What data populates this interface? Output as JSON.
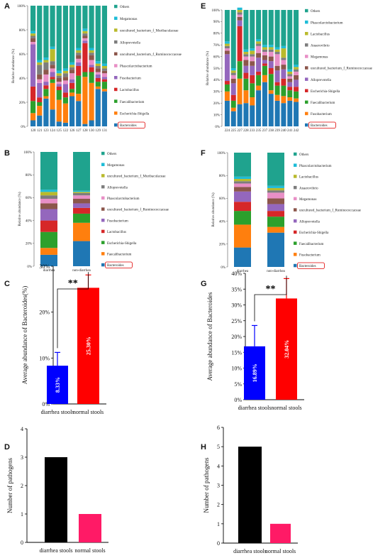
{
  "colors": {
    "Others": "#1fa38e",
    "Megamonas": "#1ebcd7",
    "uncultured_bacterium_f_Muribaculaceae": "#b9ba2c",
    "Alloprevotella": "#7d7d7d",
    "uncultured_bacterium_f_Ruminococcaceae": "#8c564b",
    "Phascolarctobacterium": "#e88fc6",
    "Fusobacterium_A": "#9467bd",
    "Lactobacillus": "#d62728",
    "Faecalibacterium": "#2ca02c",
    "Escherichia-Shigella": "#ff7f0e",
    "Bacteroides": "#1f77b4"
  },
  "chart_data": [
    {
      "panel": "A",
      "type": "bar",
      "stacked": true,
      "ylabel": "Relative abundance (%)",
      "yticks": [
        "0%",
        "20%",
        "40%",
        "60%",
        "80%",
        "100%"
      ],
      "categories": [
        "120",
        "121",
        "123",
        "124",
        "125",
        "122",
        "126",
        "127",
        "128",
        "130",
        "129",
        "131"
      ],
      "legend": [
        "Others",
        "Megamonas",
        "uncultured_bacterium_f_Muribaculaceae",
        "Alloprevotella",
        "uncultured_bacterium_f_Ruminococcaceae",
        "Phascolarctobacterium",
        "Fusobacterium",
        "Lactobacillus",
        "Faecalibacterium",
        "Escherichia-Shigella",
        "Bacteroides"
      ],
      "highlight": "Bacteroides",
      "series": [
        {
          "name": "Bacteroides",
          "color": "#1f77b4",
          "values": [
            5,
            9,
            23,
            14,
            4,
            3,
            25,
            21,
            2,
            5,
            31,
            29
          ]
        },
        {
          "name": "Escherichia-Shigella",
          "color": "#ff7f0e",
          "values": [
            6,
            8,
            2,
            22,
            18,
            16,
            3,
            6,
            39,
            31,
            2,
            2
          ]
        },
        {
          "name": "Faecalibacterium",
          "color": "#2ca02c",
          "values": [
            10,
            3,
            6,
            3,
            8,
            5,
            3,
            15,
            4,
            9,
            4,
            6
          ]
        },
        {
          "name": "Lactobacillus",
          "color": "#d62728",
          "values": [
            12,
            4,
            3,
            2,
            3,
            4,
            5,
            8,
            24,
            4,
            3,
            2
          ]
        },
        {
          "name": "Fusobacterium",
          "color": "#9467bd",
          "values": [
            35,
            12,
            3,
            4,
            2,
            7,
            3,
            3,
            2,
            2,
            3,
            2
          ]
        },
        {
          "name": "Phascolarctobacterium",
          "color": "#e88fc6",
          "values": [
            2,
            3,
            6,
            3,
            2,
            3,
            5,
            3,
            2,
            4,
            2,
            3
          ]
        },
        {
          "name": "uncultured_bacterium_f_Ruminococcaceae",
          "color": "#8c564b",
          "values": [
            3,
            4,
            4,
            3,
            3,
            3,
            3,
            3,
            2,
            4,
            3,
            2
          ]
        },
        {
          "name": "Alloprevotella",
          "color": "#7d7d7d",
          "values": [
            2,
            8,
            6,
            3,
            2,
            3,
            2,
            2,
            2,
            2,
            2,
            2
          ]
        },
        {
          "name": "uncultured_bacterium_f_Muribaculaceae",
          "color": "#b9ba2c",
          "values": [
            2,
            2,
            2,
            10,
            2,
            2,
            2,
            2,
            2,
            2,
            2,
            2
          ]
        },
        {
          "name": "Megamonas",
          "color": "#1ebcd7",
          "values": [
            2,
            2,
            2,
            2,
            2,
            2,
            2,
            2,
            2,
            2,
            2,
            2
          ]
        },
        {
          "name": "Others",
          "color": "#1fa38e",
          "values": [
            21,
            45,
            43,
            34,
            54,
            52,
            47,
            35,
            19,
            35,
            46,
            48
          ]
        }
      ]
    },
    {
      "panel": "E",
      "type": "bar",
      "stacked": true,
      "ylabel": "Relative abundance (%)",
      "yticks": [
        "0%",
        "10%",
        "20%",
        "30%",
        "40%",
        "50%",
        "60%",
        "70%",
        "80%",
        "90%",
        "100%"
      ],
      "categories": [
        "224",
        "225",
        "227",
        "228",
        "233",
        "235",
        "237",
        "238",
        "239",
        "240",
        "241",
        "242"
      ],
      "legend": [
        "Others",
        "Phascolarctobacterium",
        "Lactobacillus",
        "Anaerovibrio",
        "Megamonas",
        "uncultured_bacterium_f_Ruminococcaceae",
        "Alloprevotella",
        "Escherichia-Shigella",
        "Faecalibacterium",
        "Fusobacterium",
        "Bacteroides"
      ],
      "highlight": "Bacteroides",
      "series": [
        {
          "name": "Bacteroides",
          "color": "#1f77b4",
          "values": [
            22,
            13,
            19,
            20,
            18,
            31,
            38,
            28,
            22,
            20,
            22,
            21
          ]
        },
        {
          "name": "Fusobacterium",
          "color": "#ff7f0e",
          "values": [
            8,
            3,
            22,
            11,
            7,
            4,
            6,
            3,
            5,
            6,
            3,
            3
          ]
        },
        {
          "name": "Faecalibacterium",
          "color": "#2ca02c",
          "values": [
            6,
            6,
            15,
            10,
            12,
            9,
            8,
            14,
            8,
            9,
            6,
            6
          ]
        },
        {
          "name": "Escherichia-Shigella",
          "color": "#d62728",
          "values": [
            3,
            5,
            30,
            5,
            7,
            3,
            2,
            5,
            3,
            6,
            3,
            4
          ]
        },
        {
          "name": "Alloprevotella",
          "color": "#9467bd",
          "values": [
            23,
            10,
            5,
            6,
            8,
            12,
            3,
            6,
            10,
            8,
            4,
            6
          ]
        },
        {
          "name": "uncultured_bacterium_f_Ruminococcaceae",
          "color": "#8c564b",
          "values": [
            3,
            4,
            3,
            5,
            4,
            4,
            4,
            4,
            4,
            4,
            3,
            4
          ]
        },
        {
          "name": "Megamonas",
          "color": "#e88fc6",
          "values": [
            2,
            3,
            2,
            3,
            4,
            6,
            3,
            4,
            10,
            4,
            2,
            3
          ]
        },
        {
          "name": "Anaerovibrio",
          "color": "#7d7d7d",
          "values": [
            2,
            2,
            2,
            2,
            2,
            2,
            2,
            2,
            2,
            2,
            2,
            2
          ]
        },
        {
          "name": "Lactobacillus",
          "color": "#b9ba2c",
          "values": [
            2,
            2,
            2,
            2,
            3,
            2,
            2,
            2,
            2,
            8,
            2,
            2
          ]
        },
        {
          "name": "Phascolarctobacterium",
          "color": "#1ebcd7",
          "values": [
            2,
            2,
            2,
            2,
            2,
            2,
            2,
            2,
            2,
            2,
            2,
            2
          ]
        },
        {
          "name": "Others",
          "color": "#1fa38e",
          "values": [
            27,
            50,
            -2,
            34,
            33,
            25,
            30,
            30,
            32,
            31,
            51,
            47
          ]
        }
      ]
    },
    {
      "panel": "B",
      "type": "bar",
      "stacked": true,
      "ylabel": "Relative abundance (%)",
      "yticks": [
        "0%",
        "20%",
        "40%",
        "60%",
        "80%",
        "100%"
      ],
      "categories": [
        "diarrhea",
        "non-diarrhea"
      ],
      "legend": [
        "Others",
        "Megamonas",
        "uncultured_bacterium_f_Muribaculaceae",
        "Alloprevotella",
        "Phascolarctobacterium",
        "uncultured_bacterium_f_Ruminococcaceae",
        "Fusobacterium",
        "Lactobacillus",
        "Escherichia-Shigella",
        "Faecalibacterium",
        "Bacteroides"
      ],
      "highlight": "Bacteroides",
      "series": [
        {
          "name": "Bacteroides",
          "color": "#1f77b4",
          "values": [
            10,
            22
          ]
        },
        {
          "name": "Faecalibacterium",
          "color": "#ff7f0e",
          "values": [
            6,
            16
          ]
        },
        {
          "name": "Escherichia-Shigella",
          "color": "#2ca02c",
          "values": [
            14,
            8
          ]
        },
        {
          "name": "Lactobacillus",
          "color": "#d62728",
          "values": [
            10,
            5
          ]
        },
        {
          "name": "Fusobacterium",
          "color": "#9467bd",
          "values": [
            10,
            4
          ]
        },
        {
          "name": "uncultured_bacterium_f_Ruminococcaceae",
          "color": "#8c564b",
          "values": [
            5,
            4
          ]
        },
        {
          "name": "Phascolarctobacterium",
          "color": "#e88fc6",
          "values": [
            4,
            3
          ]
        },
        {
          "name": "Alloprevotella",
          "color": "#7d7d7d",
          "values": [
            3,
            2
          ]
        },
        {
          "name": "uncultured_bacterium_f_Muribaculaceae",
          "color": "#b9ba2c",
          "values": [
            3,
            1
          ]
        },
        {
          "name": "Megamonas",
          "color": "#1ebcd7",
          "values": [
            2,
            1
          ]
        },
        {
          "name": "Others",
          "color": "#1fa38e",
          "values": [
            33,
            34
          ]
        }
      ]
    },
    {
      "panel": "F",
      "type": "bar",
      "stacked": true,
      "ylabel": "Relative abundance (%)",
      "yticks": [
        "0%",
        "20%",
        "40%",
        "60%",
        "80%",
        "100%"
      ],
      "categories": [
        "diarrhea",
        "non-diarrhea"
      ],
      "legend": [
        "Others",
        "Phascolarctobacterium",
        "Lactobacillus",
        "Anaerovibrio",
        "Megamonas",
        "uncultured_bacterium_f_Ruminococcaceae",
        "Alloprevotella",
        "Escherichia-Shigella",
        "Faecalibacterium",
        "Fusobacterium",
        "Bacteroides"
      ],
      "highlight": "Bacteroides",
      "series": [
        {
          "name": "Bacteroides",
          "color": "#1f77b4",
          "values": [
            17,
            30
          ]
        },
        {
          "name": "Fusobacterium",
          "color": "#ff7f0e",
          "values": [
            20,
            5
          ]
        },
        {
          "name": "Faecalibacterium",
          "color": "#2ca02c",
          "values": [
            12,
            9
          ]
        },
        {
          "name": "Escherichia-Shigella",
          "color": "#d62728",
          "values": [
            8,
            5
          ]
        },
        {
          "name": "Alloprevotella",
          "color": "#9467bd",
          "values": [
            9,
            6
          ]
        },
        {
          "name": "uncultured_bacterium_f_Ruminococcaceae",
          "color": "#8c564b",
          "values": [
            4,
            5
          ]
        },
        {
          "name": "Megamonas",
          "color": "#e88fc6",
          "values": [
            3,
            5
          ]
        },
        {
          "name": "Anaerovibrio",
          "color": "#7d7d7d",
          "values": [
            2,
            2
          ]
        },
        {
          "name": "Lactobacillus",
          "color": "#b9ba2c",
          "values": [
            2,
            2
          ]
        },
        {
          "name": "Phascolarctobacterium",
          "color": "#1ebcd7",
          "values": [
            2,
            2
          ]
        },
        {
          "name": "Others",
          "color": "#1fa38e",
          "values": [
            21,
            29
          ]
        }
      ]
    },
    {
      "panel": "C",
      "type": "bar",
      "ylabel": "Average abundance of Bacteroides(%)",
      "yticks": [
        "0%",
        "10%",
        "20%",
        "30%"
      ],
      "ylim": [
        0,
        30
      ],
      "categories": [
        "diarrhea stools",
        "normal stools"
      ],
      "values": [
        8.33,
        25.3
      ],
      "errors": [
        2.9,
        2.8
      ],
      "value_labels": [
        "8.33%",
        "25.30%"
      ],
      "colors": [
        "#0000ff",
        "#ff0000"
      ],
      "significance": "**"
    },
    {
      "panel": "G",
      "type": "bar",
      "ylabel": "Average abundance of Bacteroides",
      "yticks": [
        "0%",
        "5%",
        "10%",
        "15%",
        "20%",
        "25%",
        "30%",
        "35%",
        "40%"
      ],
      "ylim": [
        0,
        40
      ],
      "categories": [
        "diarrhea stools",
        "normal stools"
      ],
      "values": [
        16.89,
        32.04
      ],
      "errors": [
        6.6,
        6.3
      ],
      "value_labels": [
        "16.89%",
        "32.04%"
      ],
      "colors": [
        "#0000ff",
        "#ff0000"
      ],
      "significance": "**"
    },
    {
      "panel": "D",
      "type": "bar",
      "ylabel": "Number of pathogens",
      "yticks": [
        "0",
        "1",
        "2",
        "3",
        "4"
      ],
      "ylim": [
        0,
        4
      ],
      "categories": [
        "diarrhea stools",
        "normal stools"
      ],
      "values": [
        3,
        1
      ],
      "colors": [
        "#000000",
        "#ff1a66"
      ]
    },
    {
      "panel": "H",
      "type": "bar",
      "ylabel": "Number of pathogens",
      "yticks": [
        "0",
        "1",
        "2",
        "3",
        "4",
        "5",
        "6"
      ],
      "ylim": [
        0,
        6
      ],
      "categories": [
        "diarrhea stools",
        "normal stools"
      ],
      "values": [
        5,
        1
      ],
      "colors": [
        "#000000",
        "#ff1a66"
      ]
    }
  ]
}
